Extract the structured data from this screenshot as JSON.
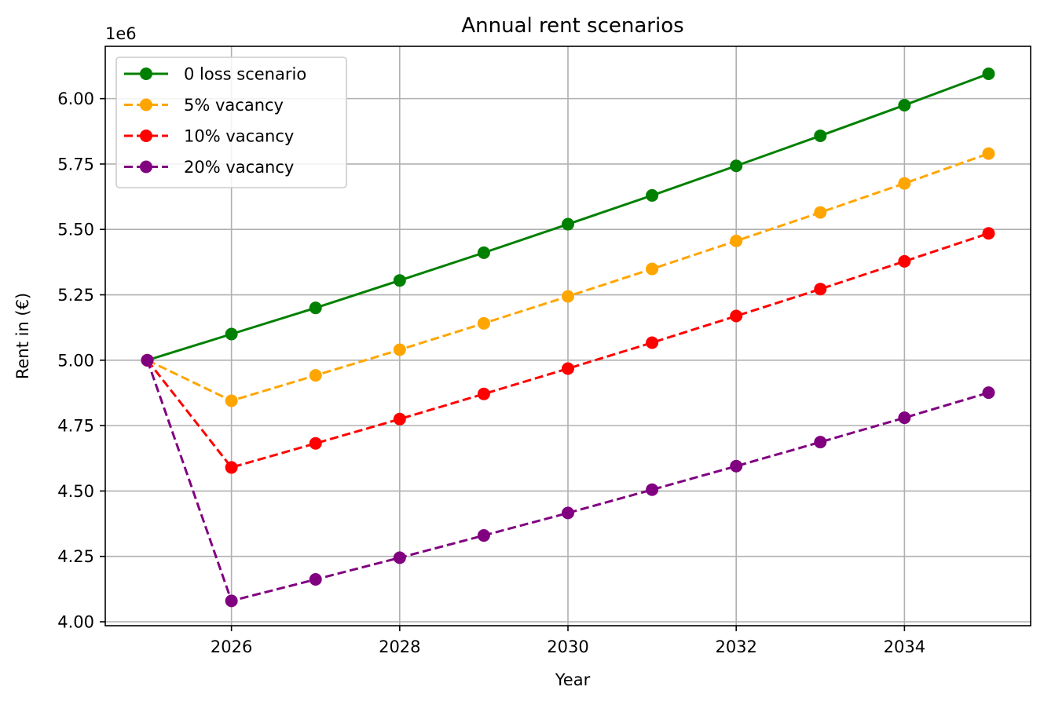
{
  "chart_data": {
    "type": "line",
    "title": "Annual rent scenarios",
    "xlabel": "Year",
    "ylabel": "Rent in (€)",
    "y_offset_label": "1e6",
    "x": [
      2025,
      2026,
      2027,
      2028,
      2029,
      2030,
      2031,
      2032,
      2033,
      2034,
      2035
    ],
    "xlim": [
      2024.5,
      2035.5
    ],
    "ylim": [
      3.985,
      6.2
    ],
    "x_ticks": [
      2026,
      2028,
      2030,
      2032,
      2034
    ],
    "x_tick_labels": [
      "2026",
      "2028",
      "2030",
      "2032",
      "2034"
    ],
    "y_ticks": [
      4.0,
      4.25,
      4.5,
      4.75,
      5.0,
      5.25,
      5.5,
      5.75,
      6.0
    ],
    "y_tick_labels": [
      "4.00",
      "4.25",
      "4.50",
      "4.75",
      "5.00",
      "5.25",
      "5.50",
      "5.75",
      "6.00"
    ],
    "grid": true,
    "legend_position": "top-left",
    "series": [
      {
        "name": "0 loss scenario",
        "color": "#008000",
        "linestyle": "solid",
        "marker": "circle",
        "values": [
          5.0,
          5.1,
          5.2,
          5.305,
          5.411,
          5.52,
          5.63,
          5.743,
          5.858,
          5.975,
          6.095
        ]
      },
      {
        "name": "5% vacancy",
        "color": "#ffa500",
        "linestyle": "dashed",
        "marker": "circle",
        "values": [
          5.0,
          4.845,
          4.942,
          5.04,
          5.141,
          5.244,
          5.349,
          5.456,
          5.565,
          5.676,
          5.79
        ]
      },
      {
        "name": "10% vacancy",
        "color": "#ff0000",
        "linestyle": "dashed",
        "marker": "circle",
        "values": [
          5.0,
          4.59,
          4.682,
          4.775,
          4.871,
          4.968,
          5.067,
          5.169,
          5.272,
          5.378,
          5.485
        ]
      },
      {
        "name": "20% vacancy",
        "color": "#800080",
        "linestyle": "dashed",
        "marker": "circle",
        "values": [
          5.0,
          4.08,
          4.162,
          4.245,
          4.33,
          4.416,
          4.505,
          4.595,
          4.687,
          4.78,
          4.876
        ]
      }
    ]
  }
}
